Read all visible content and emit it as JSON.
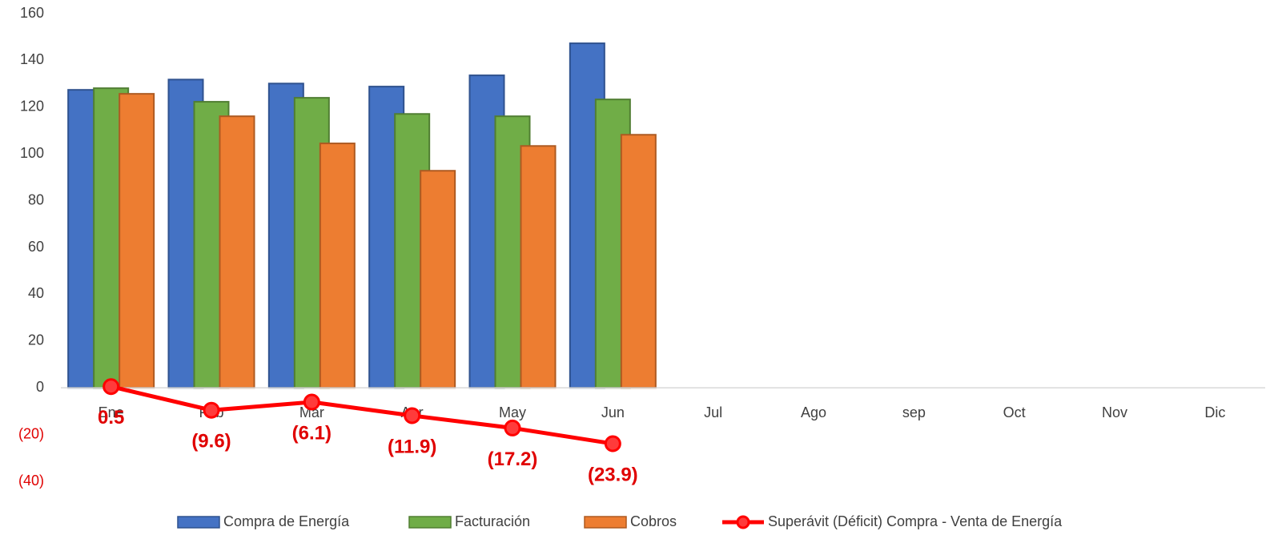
{
  "chart_data": {
    "type": "bar",
    "categories": [
      "Ene",
      "Feb",
      "Mar",
      "Apr",
      "May",
      "Jun",
      "Jul",
      "Ago",
      "sep",
      "Oct",
      "Nov",
      "Dic"
    ],
    "series": [
      {
        "name": "Compra de Energía",
        "color": "#4472c4",
        "values": [
          127.4,
          131.8,
          130.1,
          128.8,
          133.6,
          147.3,
          null,
          null,
          null,
          null,
          null,
          null
        ]
      },
      {
        "name": "Facturación",
        "color": "#70ad47",
        "values": [
          128.1,
          122.3,
          124,
          117.1,
          116.1,
          123.3,
          null,
          null,
          null,
          null,
          null,
          null
        ]
      },
      {
        "name": "Cobros",
        "color": "#ed7d31",
        "values": [
          125.7,
          116.1,
          104.5,
          92.8,
          103.4,
          108.2,
          null,
          null,
          null,
          null,
          null,
          null
        ]
      },
      {
        "name": "Superávit (Déficit) Compra - Venta de Energía",
        "color": "#ff0000",
        "type": "line",
        "values": [
          0.5,
          -9.6,
          -6.1,
          -11.9,
          -17.2,
          -23.9,
          null,
          null,
          null,
          null,
          null,
          null
        ],
        "value_labels": [
          "0.5",
          "(9.6)",
          "(6.1)",
          "(11.9)",
          "(17.2)",
          "(23.9)",
          null,
          null,
          null,
          null,
          null,
          null
        ]
      }
    ],
    "ylim": [
      -40,
      160
    ],
    "yticks": [
      {
        "value": -40,
        "label": "(40)"
      },
      {
        "value": -20,
        "label": "(20)"
      },
      0,
      20,
      40,
      60,
      80,
      100,
      120,
      140,
      160
    ],
    "grid": false,
    "legend": "bottom"
  }
}
